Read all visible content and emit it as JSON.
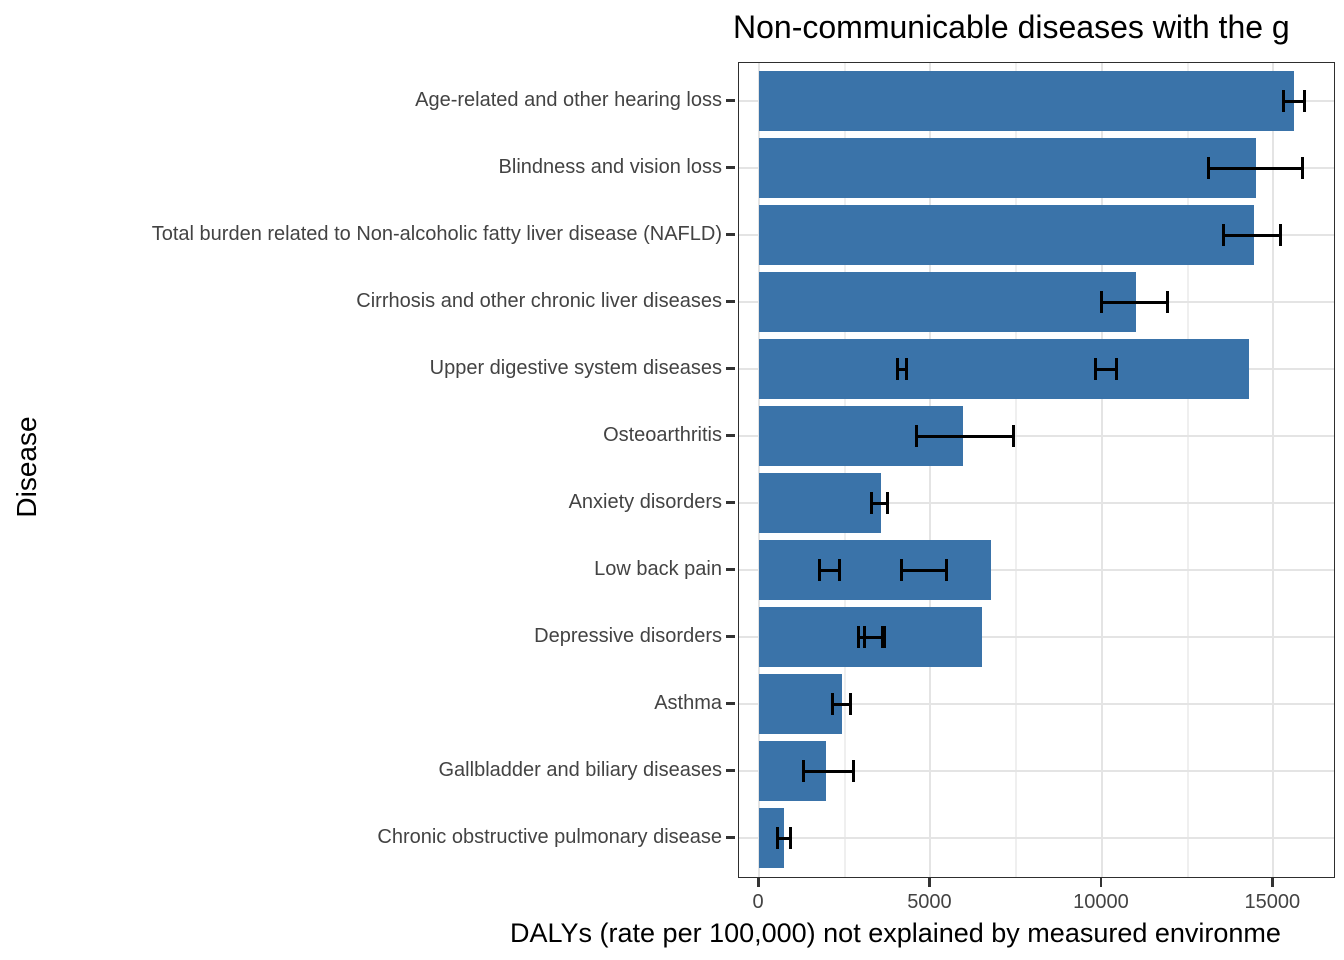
{
  "title": "Non-communicable diseases with the g",
  "axes": {
    "x_label": "DALYs (rate per 100,000) not explained by measured environme",
    "y_label": "Disease",
    "x_tick_labels": [
      "0",
      "5000",
      "10000",
      "15000"
    ]
  },
  "colors": {
    "bar": "#3A73A9",
    "error_bar": "#000000",
    "grid_major": "#E4E4E4",
    "grid_minor": "#EFEFEF",
    "panel_border": "#2E2E2E",
    "axis_text": "#434343",
    "title_text": "#000000",
    "background": "#FFFFFF"
  },
  "chart_data": {
    "type": "bar",
    "orientation": "horizontal",
    "title": "Non-communicable diseases with the g",
    "xlabel": "DALYs (rate per 100,000) not explained by measured environme",
    "ylabel": "Disease",
    "xlim": [
      0,
      16800
    ],
    "x_major_ticks": [
      0,
      5000,
      10000,
      15000
    ],
    "x_minor_gridlines": [
      2500,
      7500,
      12500
    ],
    "grid": "on",
    "legend": "none",
    "categories": [
      "Age-related and other hearing loss",
      "Blindness and vision loss",
      "Total burden related to Non-alcoholic fatty liver disease (NAFLD)",
      "Cirrhosis and other chronic liver diseases",
      "Upper digestive system diseases",
      "Osteoarthritis",
      "Anxiety disorders",
      "Low back pain",
      "Depressive disorders",
      "Asthma",
      "Gallbladder and biliary diseases",
      "Chronic obstructive pulmonary disease"
    ],
    "values": [
      15600,
      14500,
      14450,
      11000,
      14300,
      5950,
      3550,
      6760,
      6500,
      2430,
      1950,
      740
    ],
    "error_bars": [
      [
        [
          15300,
          15900
        ]
      ],
      [
        [
          13100,
          15850
        ]
      ],
      [
        [
          13550,
          15200
        ]
      ],
      [
        [
          10000,
          11900
        ]
      ],
      [
        [
          4050,
          4310
        ],
        [
          9820,
          10430
        ]
      ],
      [
        [
          4600,
          7420
        ]
      ],
      [
        [
          3270,
          3740
        ]
      ],
      [
        [
          1760,
          2360
        ],
        [
          4160,
          5480
        ]
      ],
      [
        [
          2900,
          3600
        ],
        [
          3080,
          3650
        ]
      ],
      [
        [
          2150,
          2680
        ]
      ],
      [
        [
          1290,
          2750
        ]
      ],
      [
        [
          545,
          905
        ]
      ]
    ]
  }
}
